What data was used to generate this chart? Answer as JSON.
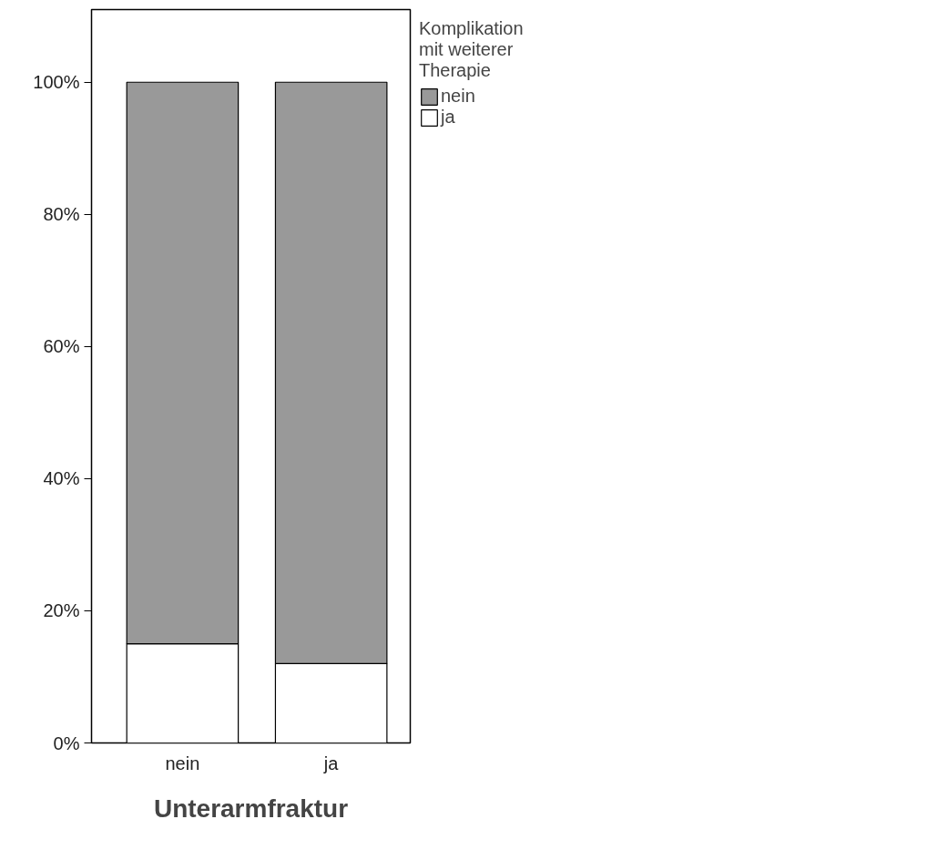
{
  "chart_data": {
    "type": "bar",
    "stacked": true,
    "xlabel": "Unterarmfraktur",
    "legend_title": "Komplikation\nmit weiterer\nTherapie",
    "legend": "top right",
    "categories": [
      "nein",
      "ja"
    ],
    "series": [
      {
        "name": "ja",
        "color": "#ffffff",
        "values": [
          15,
          12
        ]
      },
      {
        "name": "nein",
        "color": "#999999",
        "values": [
          85,
          88
        ]
      }
    ],
    "ylim": [
      0,
      111
    ],
    "yticks": [
      {
        "value": 0,
        "label": "0%"
      },
      {
        "value": 20,
        "label": "20%"
      },
      {
        "value": 40,
        "label": "40%"
      },
      {
        "value": 60,
        "label": "60%"
      },
      {
        "value": 80,
        "label": "80%"
      },
      {
        "value": 100,
        "label": "100%"
      }
    ],
    "grid": false
  }
}
